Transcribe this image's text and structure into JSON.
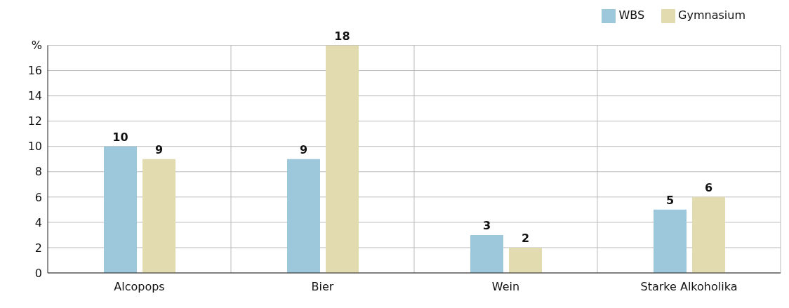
{
  "chart_data": {
    "type": "bar",
    "categories": [
      "Alcopops",
      "Bier",
      "Wein",
      "Starke Alkoholika"
    ],
    "series": [
      {
        "name": "WBS",
        "color": "#9dc8dc",
        "values": [
          10,
          9,
          3,
          5
        ]
      },
      {
        "name": "Gymnasium",
        "color": "#e3dbb0",
        "values": [
          9,
          18,
          2,
          6
        ]
      }
    ],
    "ylim": [
      0,
      18
    ],
    "yticks": [
      0,
      2,
      4,
      6,
      8,
      10,
      12,
      14,
      16,
      {
        "value": 18,
        "label": "%"
      }
    ],
    "grid": true,
    "legend": "top right",
    "data_labels": true
  }
}
